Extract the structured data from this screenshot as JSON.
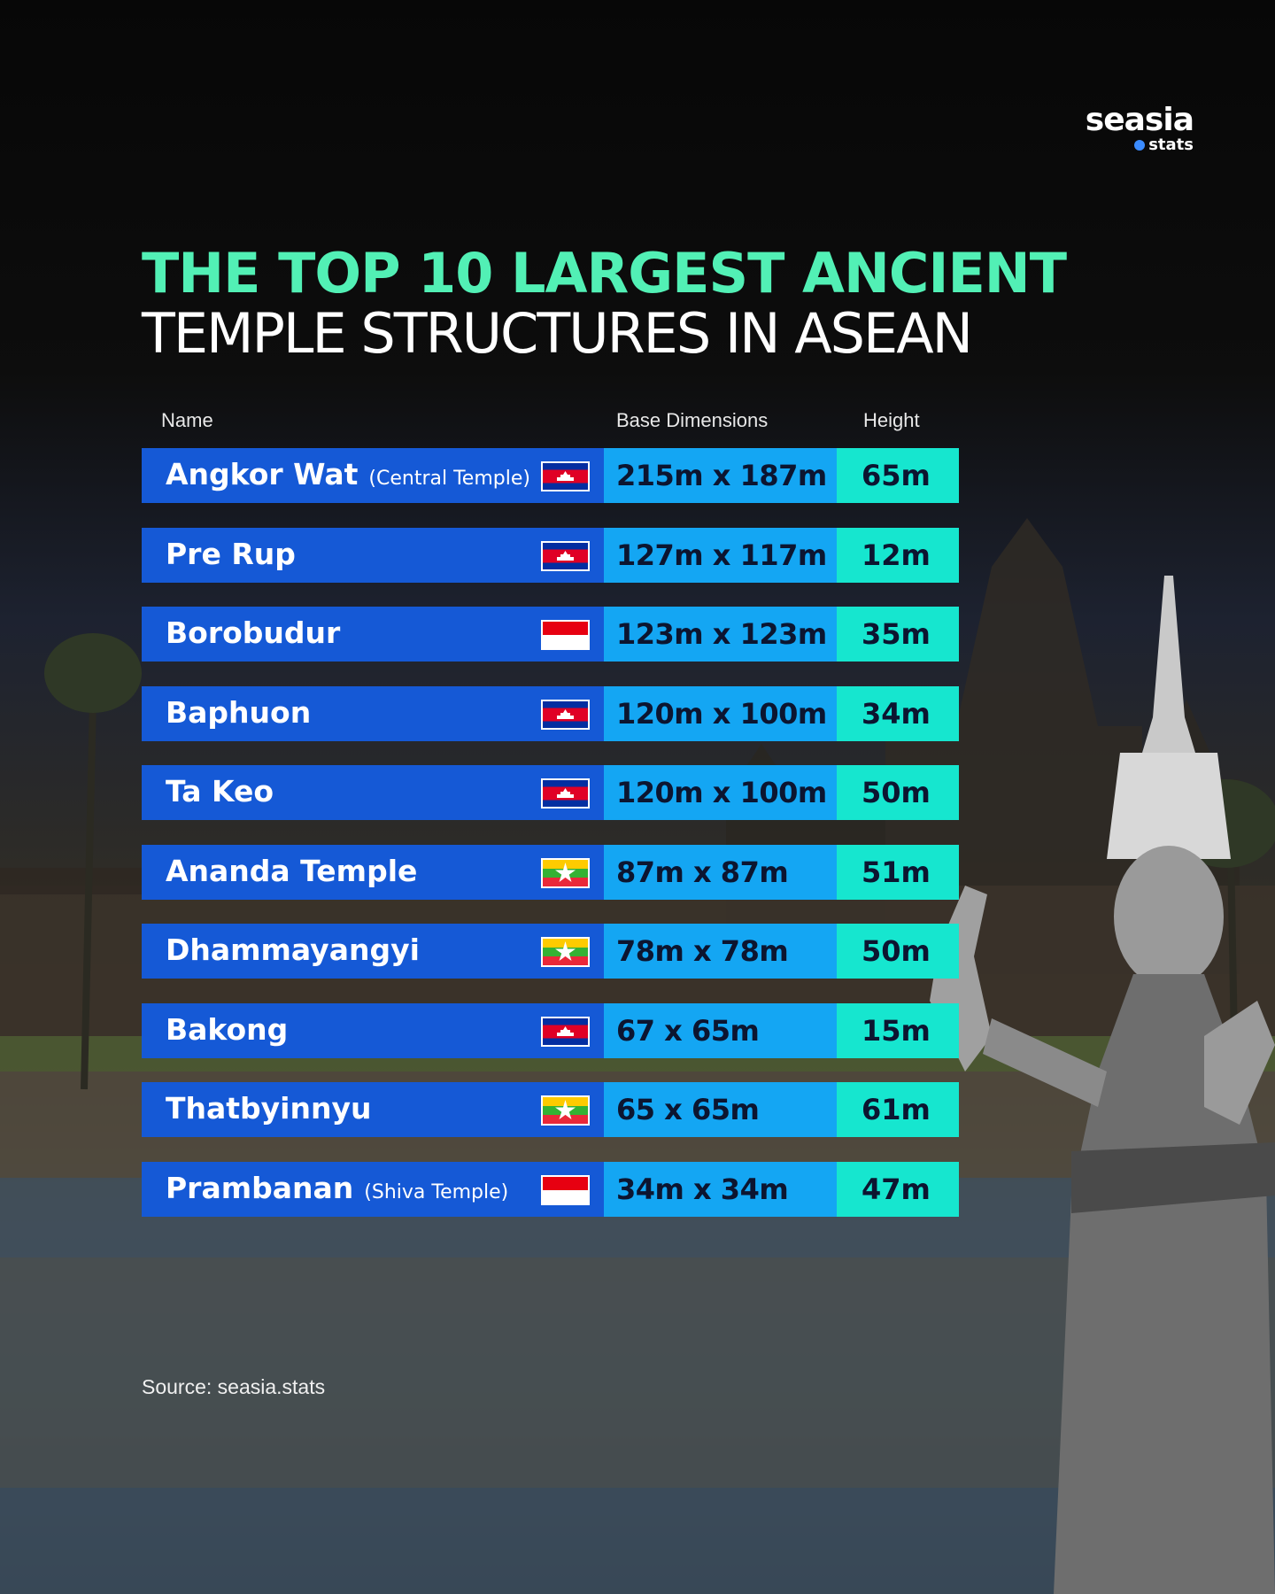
{
  "brand": {
    "name": "seasia",
    "sub": "stats"
  },
  "title": {
    "line1": "THE TOP 10 LARGEST ANCIENT",
    "line2": "TEMPLE STRUCTURES IN ASEAN"
  },
  "headers": {
    "name": "Name",
    "dimensions": "Base Dimensions",
    "height": "Height"
  },
  "source": "Source: seasia.stats",
  "colors": {
    "title_accent": "#52f0b5",
    "name_cell": "#1559d6",
    "dim_cell": "#14a6f3",
    "height_cell": "#16e6cf"
  },
  "chart_data": {
    "type": "table",
    "columns": [
      "Name",
      "Base Dimensions",
      "Height"
    ],
    "rows": [
      {
        "name": "Angkor Wat",
        "note": "(Central Temple)",
        "flag": "cambodia-flag",
        "dimensions": "215m x 187m",
        "height": "65m"
      },
      {
        "name": "Pre Rup",
        "note": "",
        "flag": "cambodia-flag",
        "dimensions": "127m x 117m",
        "height": "12m"
      },
      {
        "name": "Borobudur",
        "note": "",
        "flag": "indonesia-flag",
        "dimensions": "123m x 123m",
        "height": "35m"
      },
      {
        "name": "Baphuon",
        "note": "",
        "flag": "cambodia-flag",
        "dimensions": "120m x 100m",
        "height": "34m"
      },
      {
        "name": "Ta Keo",
        "note": "",
        "flag": "cambodia-flag",
        "dimensions": "120m x 100m",
        "height": "50m"
      },
      {
        "name": "Ananda Temple",
        "note": "",
        "flag": "myanmar-flag",
        "dimensions": "87m x 87m",
        "height": "51m"
      },
      {
        "name": "Dhammayangyi",
        "note": "",
        "flag": "myanmar-flag",
        "dimensions": "78m x 78m",
        "height": "50m"
      },
      {
        "name": "Bakong",
        "note": "",
        "flag": "cambodia-flag",
        "dimensions": "67 x 65m",
        "height": "15m"
      },
      {
        "name": "Thatbyinnyu",
        "note": "",
        "flag": "myanmar-flag",
        "dimensions": "65 x 65m",
        "height": "61m"
      },
      {
        "name": "Prambanan",
        "note": "(Shiva Temple)",
        "flag": "indonesia-flag",
        "dimensions": "34m x 34m",
        "height": "47m"
      }
    ]
  }
}
